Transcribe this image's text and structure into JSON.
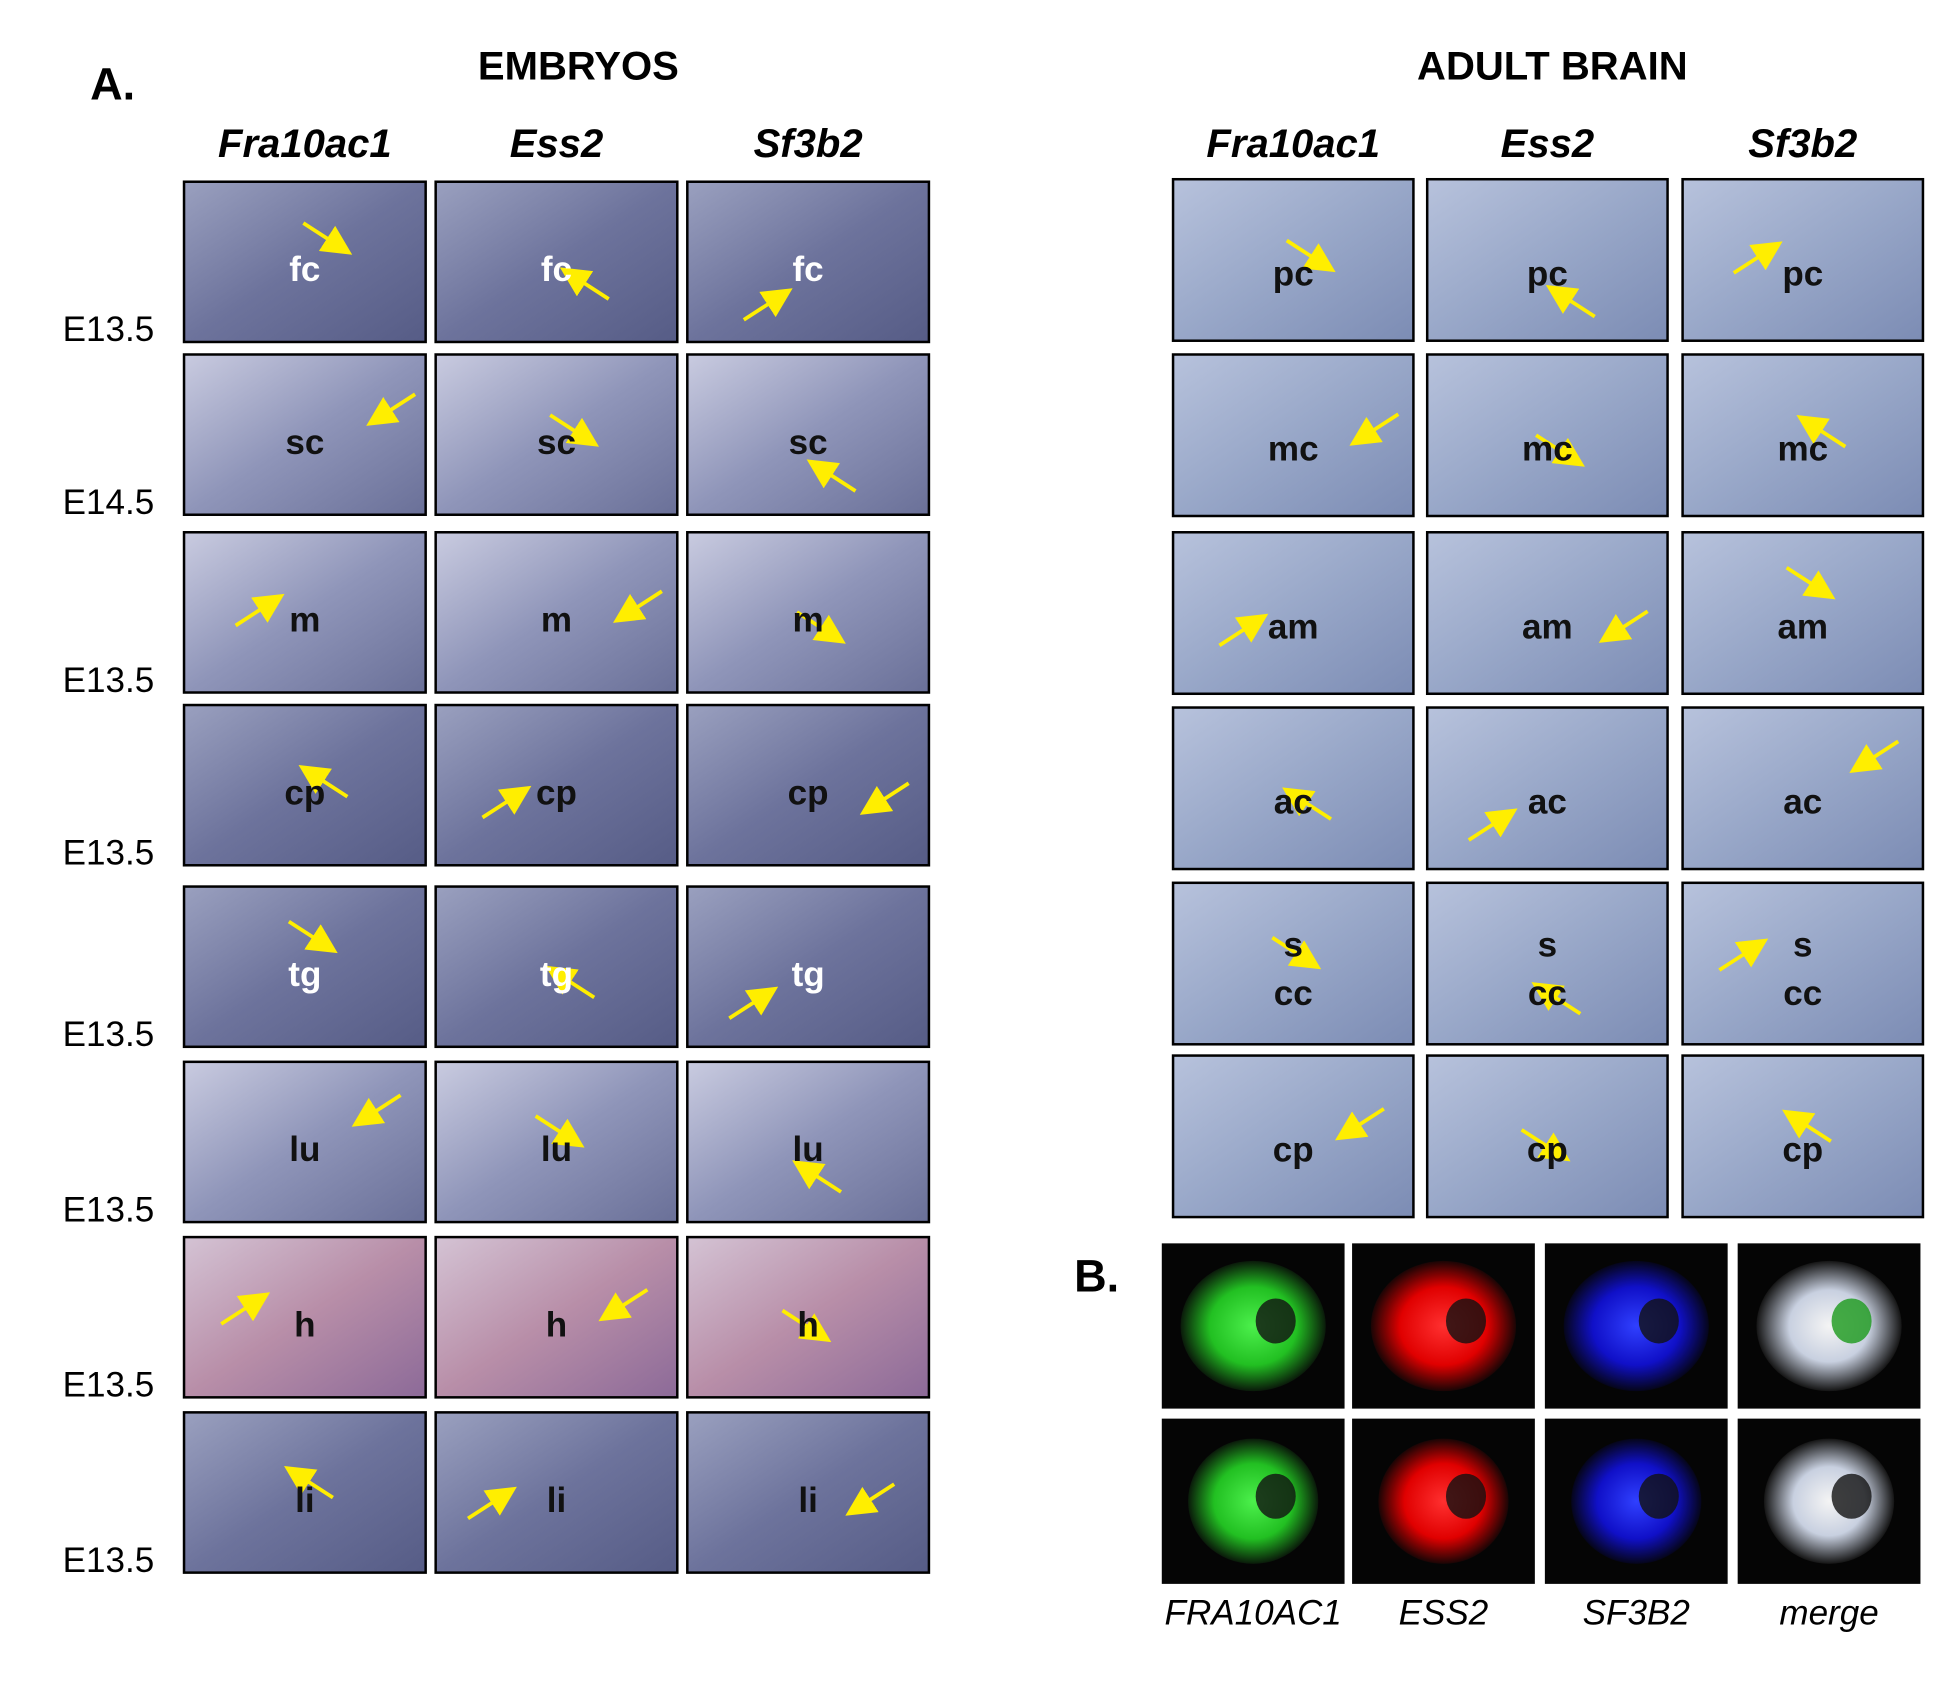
{
  "panel_a": {
    "label": "A.",
    "embryos": {
      "title": "EMBRYOS",
      "columns": [
        "Fra10ac1",
        "Ess2",
        "Sf3b2"
      ],
      "rows": [
        {
          "stage": "E13.5",
          "labels": [
            "fc",
            "fc",
            "fc"
          ]
        },
        {
          "stage": "E14.5",
          "labels": [
            "sc",
            "sc",
            "sc"
          ]
        },
        {
          "stage": "E13.5",
          "labels": [
            "m",
            "m",
            "m"
          ]
        },
        {
          "stage": "E13.5",
          "labels": [
            "cp",
            "cp",
            "cp"
          ]
        },
        {
          "stage": "E13.5",
          "labels": [
            "tg",
            "tg",
            "tg"
          ]
        },
        {
          "stage": "E13.5",
          "labels": [
            "lu",
            "lu",
            "lu"
          ]
        },
        {
          "stage": "E13.5",
          "labels": [
            "h",
            "h",
            "h"
          ]
        },
        {
          "stage": "E13.5",
          "labels": [
            "li",
            "li",
            "li"
          ]
        }
      ]
    },
    "adult_brain": {
      "title": "ADULT BRAIN",
      "columns": [
        "Fra10ac1",
        "Ess2",
        "Sf3b2"
      ],
      "rows": [
        {
          "cells": [
            [
              "pc"
            ],
            [
              "pc"
            ],
            [
              "pc"
            ]
          ]
        },
        {
          "cells": [
            [
              "mc"
            ],
            [
              "mc"
            ],
            [
              "mc"
            ]
          ]
        },
        {
          "cells": [
            [
              "am"
            ],
            [
              "am"
            ],
            [
              "am"
            ]
          ]
        },
        {
          "cells": [
            [
              "ac"
            ],
            [
              "ac"
            ],
            [
              "ac"
            ]
          ]
        },
        {
          "cells": [
            [
              "s",
              "cc"
            ],
            [
              "s",
              "cc"
            ],
            [
              "s",
              "cc"
            ]
          ]
        },
        {
          "cells": [
            [
              "cp"
            ],
            [
              "cp"
            ],
            [
              "cp"
            ]
          ]
        }
      ]
    }
  },
  "panel_b": {
    "label": "B.",
    "channels": [
      "FRA10AC1",
      "ESS2",
      "SF3B2",
      "merge"
    ]
  }
}
